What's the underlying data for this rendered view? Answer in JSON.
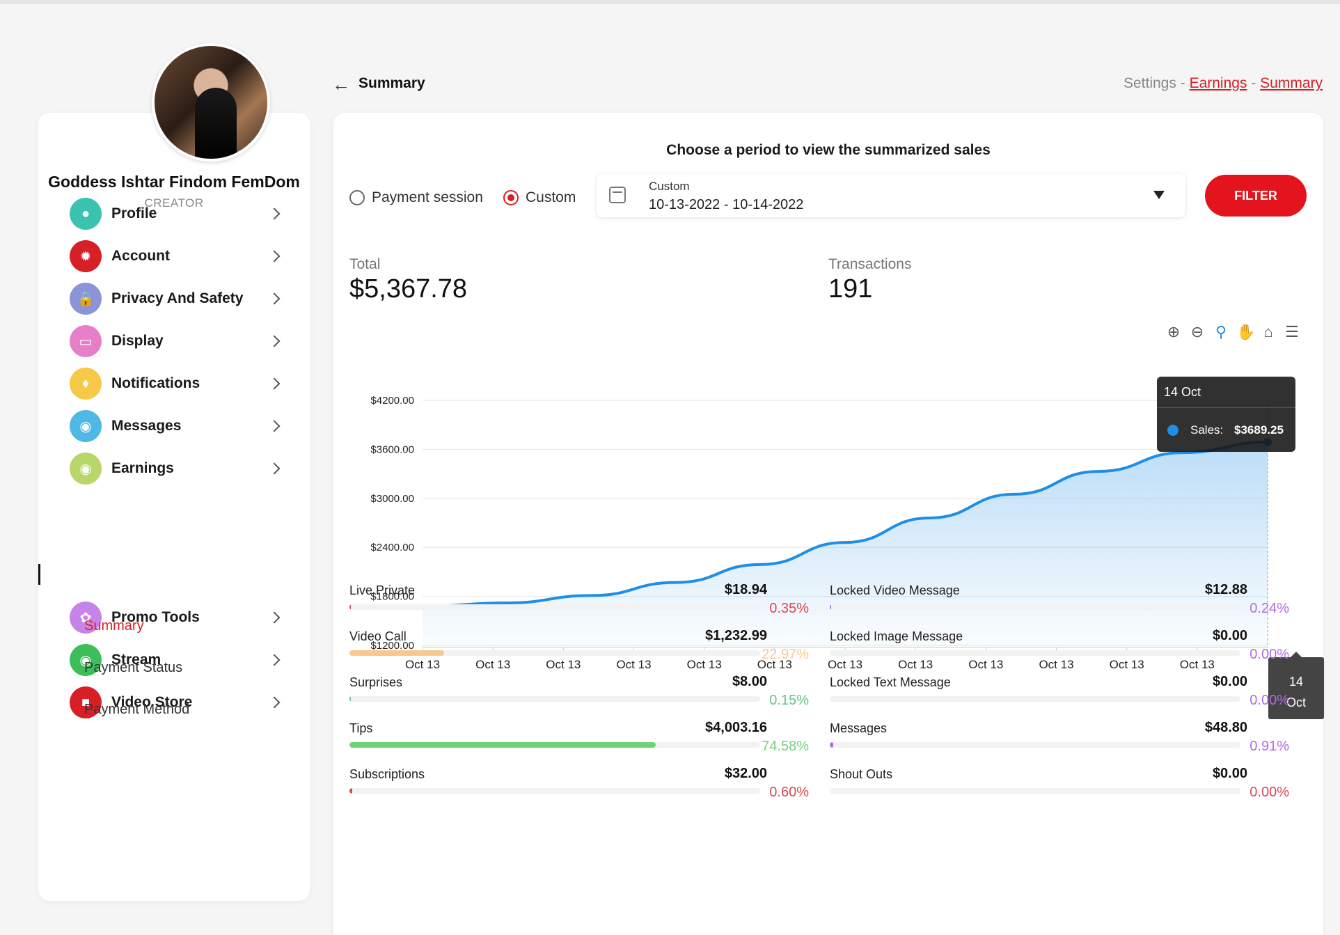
{
  "creator": {
    "name": "Goddess Ishtar Findom FemDom",
    "role": "CREATOR"
  },
  "sidebar": {
    "items": [
      {
        "label": "Profile",
        "icon": "person-icon",
        "color": "#3cc3b0"
      },
      {
        "label": "Account",
        "icon": "gear-icon",
        "color": "#d61f26"
      },
      {
        "label": "Privacy And Safety",
        "icon": "lock-icon",
        "color": "#8a94d6"
      },
      {
        "label": "Display",
        "icon": "monitor-icon",
        "color": "#e67fc8"
      },
      {
        "label": "Notifications",
        "icon": "bell-icon",
        "color": "#f7c948"
      },
      {
        "label": "Messages",
        "icon": "chat-icon",
        "color": "#4fb9e6"
      },
      {
        "label": "Earnings",
        "icon": "earnings-icon",
        "color": "#b9d66b"
      },
      {
        "label": "Promo Tools",
        "icon": "promo-icon",
        "color": "#c684e8"
      },
      {
        "label": "Stream",
        "icon": "stream-icon",
        "color": "#3cbf5a"
      },
      {
        "label": "Video Store",
        "icon": "bag-icon",
        "color": "#d61f26"
      }
    ],
    "earnings_sub": [
      "Summary",
      "Payment Status",
      "Payment Method"
    ]
  },
  "header": {
    "title": "Summary",
    "breadcrumb_settings": "Settings",
    "breadcrumb_sep": "-",
    "breadcrumb_earnings": "Earnings",
    "breadcrumb_summary": "Summary"
  },
  "period": {
    "title": "Choose a period to view the summarized sales",
    "option_payment_session": "Payment session",
    "option_custom": "Custom",
    "select_label": "Custom",
    "select_value": "10-13-2022 - 10-14-2022",
    "filter_label": "FILTER"
  },
  "stats": {
    "total_label": "Total",
    "total_value": "$5,367.78",
    "transactions_label": "Transactions",
    "transactions_value": "191"
  },
  "chart_data": {
    "type": "area",
    "series": [
      {
        "name": "Sales",
        "color": "#1e8ee6"
      }
    ],
    "x_tick_labels": [
      "Oct 13",
      "Oct 13",
      "Oct 13",
      "Oct 13",
      "Oct 13",
      "Oct 13",
      "Oct 13",
      "Oct 13",
      "Oct 13",
      "Oct 13",
      "Oct 13",
      "Oct 13"
    ],
    "y_tick_labels": [
      "$4200.00",
      "$3600.00",
      "$3000.00",
      "$2400.00",
      "$1800.00",
      "$1200.00"
    ],
    "ylim": [
      1200,
      4200
    ],
    "curve": [
      {
        "x": 0,
        "y": 1678.53
      },
      {
        "x": 0.1,
        "y": 1720
      },
      {
        "x": 0.2,
        "y": 1810
      },
      {
        "x": 0.3,
        "y": 1970
      },
      {
        "x": 0.4,
        "y": 2190
      },
      {
        "x": 0.5,
        "y": 2460
      },
      {
        "x": 0.6,
        "y": 2760
      },
      {
        "x": 0.7,
        "y": 3050
      },
      {
        "x": 0.8,
        "y": 3330
      },
      {
        "x": 0.9,
        "y": 3560
      },
      {
        "x": 1.0,
        "y": 3689.25
      }
    ],
    "tooltip": {
      "date": "14 Oct",
      "series": "Sales:",
      "value": "$3689.25"
    },
    "x_hover_label": [
      "14",
      "Oct"
    ],
    "grid": true
  },
  "breakdown": {
    "left": [
      {
        "name": "Live Private",
        "amount": "$18.94",
        "pct": "0.35%",
        "fraction": 0.0035,
        "color": "#e0454c"
      },
      {
        "name": "Video Call",
        "amount": "$1,232.99",
        "pct": "22.97%",
        "fraction": 0.2297,
        "color": "#f8c98e"
      },
      {
        "name": "Surprises",
        "amount": "$8.00",
        "pct": "0.15%",
        "fraction": 0.0015,
        "color": "#5cc88a"
      },
      {
        "name": "Tips",
        "amount": "$4,003.16",
        "pct": "74.58%",
        "fraction": 0.7458,
        "color": "#6fd37a"
      },
      {
        "name": "Subscriptions",
        "amount": "$32.00",
        "pct": "0.60%",
        "fraction": 0.006,
        "color": "#e0454c"
      }
    ],
    "right": [
      {
        "name": "Locked Video Message",
        "amount": "$12.88",
        "pct": "0.24%",
        "fraction": 0.0024,
        "color": "#b26ae0"
      },
      {
        "name": "Locked Image Message",
        "amount": "$0.00",
        "pct": "0.00%",
        "fraction": 0,
        "color": "#b26ae0"
      },
      {
        "name": "Locked Text Message",
        "amount": "$0.00",
        "pct": "0.00%",
        "fraction": 0,
        "color": "#b26ae0"
      },
      {
        "name": "Messages",
        "amount": "$48.80",
        "pct": "0.91%",
        "fraction": 0.0091,
        "color": "#b26ae0"
      },
      {
        "name": "Shout Outs",
        "amount": "$0.00",
        "pct": "0.00%",
        "fraction": 0,
        "color": "#e0454c"
      }
    ]
  }
}
